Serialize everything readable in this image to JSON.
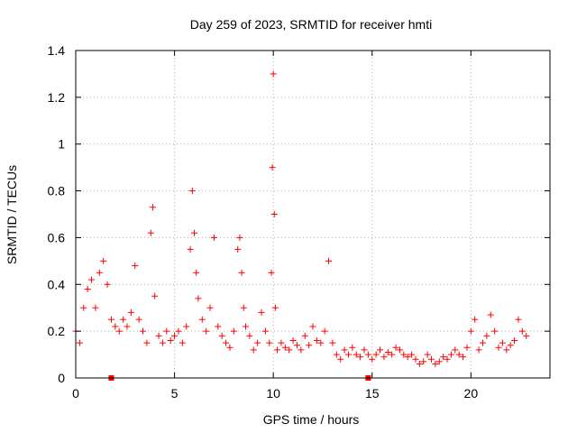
{
  "chart_data": {
    "type": "scatter",
    "title": "Day 259 of 2023, SRMTID for receiver hmti",
    "xlabel": "GPS time / hours",
    "ylabel": "SRMTID / TECUs",
    "xlim": [
      0,
      24
    ],
    "ylim": [
      0,
      1.4
    ],
    "xticks": [
      0,
      5,
      10,
      15,
      20
    ],
    "xtick_labels": [
      "0",
      "5",
      "10",
      "15",
      "20"
    ],
    "yticks": [
      0,
      0.2,
      0.4,
      0.6,
      0.8,
      1.0,
      1.2,
      1.4
    ],
    "ytick_labels": [
      "0",
      "0.2",
      "0.4",
      "0.6",
      "0.8",
      "1",
      "1.2",
      "1.4"
    ],
    "grid": true,
    "marker": "plus",
    "color": "#ff0000",
    "series": [
      {
        "name": "SRMTID",
        "x": [
          0.0,
          0.2,
          0.4,
          0.6,
          0.8,
          1.0,
          1.2,
          1.4,
          1.6,
          1.8,
          2.0,
          2.2,
          2.4,
          2.6,
          2.8,
          3.0,
          3.2,
          3.4,
          3.6,
          3.8,
          3.9,
          4.0,
          4.2,
          4.4,
          4.6,
          4.8,
          5.0,
          5.2,
          5.4,
          5.6,
          5.8,
          5.9,
          6.0,
          6.1,
          6.2,
          6.4,
          6.6,
          6.8,
          7.0,
          7.2,
          7.4,
          7.6,
          7.8,
          8.0,
          8.2,
          8.3,
          8.4,
          8.5,
          8.6,
          8.8,
          9.0,
          9.2,
          9.4,
          9.6,
          9.8,
          9.9,
          9.95,
          10.0,
          10.05,
          10.1,
          10.2,
          10.4,
          10.6,
          10.8,
          11.0,
          11.2,
          11.4,
          11.6,
          11.8,
          12.0,
          12.2,
          12.4,
          12.6,
          12.8,
          13.0,
          13.2,
          13.4,
          13.6,
          13.8,
          14.0,
          14.2,
          14.4,
          14.6,
          14.8,
          15.0,
          15.2,
          15.4,
          15.6,
          15.8,
          16.0,
          16.2,
          16.4,
          16.6,
          16.8,
          17.0,
          17.2,
          17.4,
          17.6,
          17.8,
          18.0,
          18.2,
          18.4,
          18.6,
          18.8,
          19.0,
          19.2,
          19.4,
          19.6,
          19.8,
          20.0,
          20.2,
          20.4,
          20.6,
          20.8,
          21.0,
          21.2,
          21.4,
          21.6,
          21.8,
          22.0,
          22.2,
          22.4,
          22.6,
          22.8,
          1.8,
          14.8
        ],
        "y": [
          0.2,
          0.15,
          0.3,
          0.38,
          0.42,
          0.3,
          0.45,
          0.5,
          0.4,
          0.25,
          0.22,
          0.2,
          0.25,
          0.22,
          0.28,
          0.48,
          0.25,
          0.2,
          0.15,
          0.62,
          0.73,
          0.35,
          0.18,
          0.15,
          0.2,
          0.16,
          0.18,
          0.2,
          0.15,
          0.22,
          0.55,
          0.8,
          0.62,
          0.45,
          0.34,
          0.25,
          0.2,
          0.3,
          0.6,
          0.22,
          0.18,
          0.15,
          0.13,
          0.2,
          0.55,
          0.6,
          0.45,
          0.3,
          0.22,
          0.18,
          0.12,
          0.15,
          0.28,
          0.2,
          0.15,
          0.45,
          0.9,
          1.3,
          0.7,
          0.3,
          0.12,
          0.15,
          0.13,
          0.12,
          0.16,
          0.14,
          0.12,
          0.18,
          0.14,
          0.22,
          0.16,
          0.15,
          0.2,
          0.5,
          0.15,
          0.1,
          0.08,
          0.12,
          0.1,
          0.13,
          0.1,
          0.09,
          0.12,
          0.1,
          0.08,
          0.1,
          0.12,
          0.09,
          0.11,
          0.1,
          0.13,
          0.12,
          0.1,
          0.09,
          0.1,
          0.08,
          0.06,
          0.07,
          0.1,
          0.08,
          0.06,
          0.07,
          0.09,
          0.08,
          0.1,
          0.12,
          0.1,
          0.09,
          0.13,
          0.2,
          0.25,
          0.12,
          0.15,
          0.18,
          0.27,
          0.2,
          0.13,
          0.15,
          0.12,
          0.14,
          0.16,
          0.25,
          0.2,
          0.18,
          0.0,
          0.0
        ]
      }
    ]
  }
}
